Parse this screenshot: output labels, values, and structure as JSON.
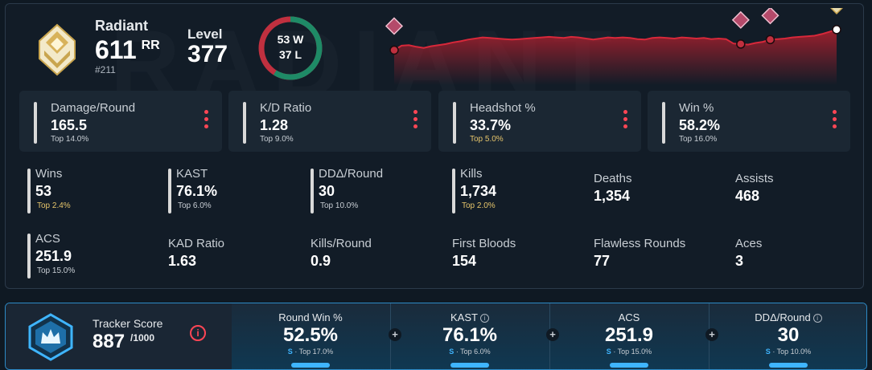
{
  "header": {
    "watermark": "RADIANT",
    "rank_name": "Radiant",
    "rr_value": "611",
    "rr_unit": "RR",
    "leaderboard_position": "#211",
    "level_label": "Level",
    "level_value": "377",
    "wins_text": "53 W",
    "losses_text": "37 L",
    "wins": 53,
    "losses": 37
  },
  "rr_history": {
    "values": [
      63,
      71,
      72,
      69,
      67,
      70,
      72,
      74,
      77,
      79,
      82,
      84,
      86,
      85,
      84,
      83,
      82,
      83,
      84,
      85,
      86,
      87,
      86,
      85,
      87,
      86,
      84,
      82,
      84,
      86,
      85,
      86,
      85,
      83,
      82,
      85,
      86,
      85,
      84,
      86,
      85,
      84,
      85,
      83,
      84,
      83,
      75,
      74,
      73,
      76,
      78,
      82,
      83,
      84,
      86,
      87,
      88,
      89,
      92,
      96,
      100
    ],
    "ylim": [
      0,
      110
    ],
    "markers": [
      0,
      47,
      51,
      60
    ]
  },
  "cards": [
    {
      "label": "Damage/Round",
      "value": "165.5",
      "percentile": "Top 14.0%",
      "gold": false
    },
    {
      "label": "K/D Ratio",
      "value": "1.28",
      "percentile": "Top 9.0%",
      "gold": false
    },
    {
      "label": "Headshot %",
      "value": "33.7%",
      "percentile": "Top 5.0%",
      "gold": true
    },
    {
      "label": "Win %",
      "value": "58.2%",
      "percentile": "Top 16.0%",
      "gold": false
    }
  ],
  "stats": [
    {
      "label": "Wins",
      "value": "53",
      "percentile": "Top 2.4%"
    },
    {
      "label": "KAST",
      "value": "76.1%",
      "percentile": "Top 6.0%"
    },
    {
      "label": "DDΔ/Round",
      "value": "30",
      "percentile": "Top 10.0%"
    },
    {
      "label": "Kills",
      "value": "1,734",
      "percentile": "Top 2.0%"
    },
    {
      "label": "Deaths",
      "value": "1,354"
    },
    {
      "label": "Assists",
      "value": "468"
    },
    {
      "label": "ACS",
      "value": "251.9",
      "percentile": "Top 15.0%"
    },
    {
      "label": "KAD Ratio",
      "value": "1.63"
    },
    {
      "label": "Kills/Round",
      "value": "0.9"
    },
    {
      "label": "First Bloods",
      "value": "154"
    },
    {
      "label": "Flawless Rounds",
      "value": "77"
    },
    {
      "label": "Aces",
      "value": "3"
    }
  ],
  "tracker": {
    "label": "Tracker Score",
    "value": "887",
    "max": "/1000",
    "info_icon": "i",
    "columns": [
      {
        "label": "Round Win %",
        "value": "52.5%",
        "grade": "S",
        "percentile": " · Top 17.0%"
      },
      {
        "label": "KAST",
        "value": "76.1%",
        "grade": "S",
        "percentile": " · Top 6.0%"
      },
      {
        "label": "ACS",
        "value": "251.9",
        "grade": "S",
        "percentile": " · Top 15.0%"
      },
      {
        "label": "DDΔ/Round",
        "value": "30",
        "grade": "S",
        "percentile": " · Top 10.0%"
      }
    ],
    "plus": "+"
  },
  "colors": {
    "accent_red": "#ff4655",
    "win_green": "#1e8a66",
    "loss_red": "#c0303f",
    "gold": "#e6c56b",
    "blue": "#3fb5ff"
  }
}
